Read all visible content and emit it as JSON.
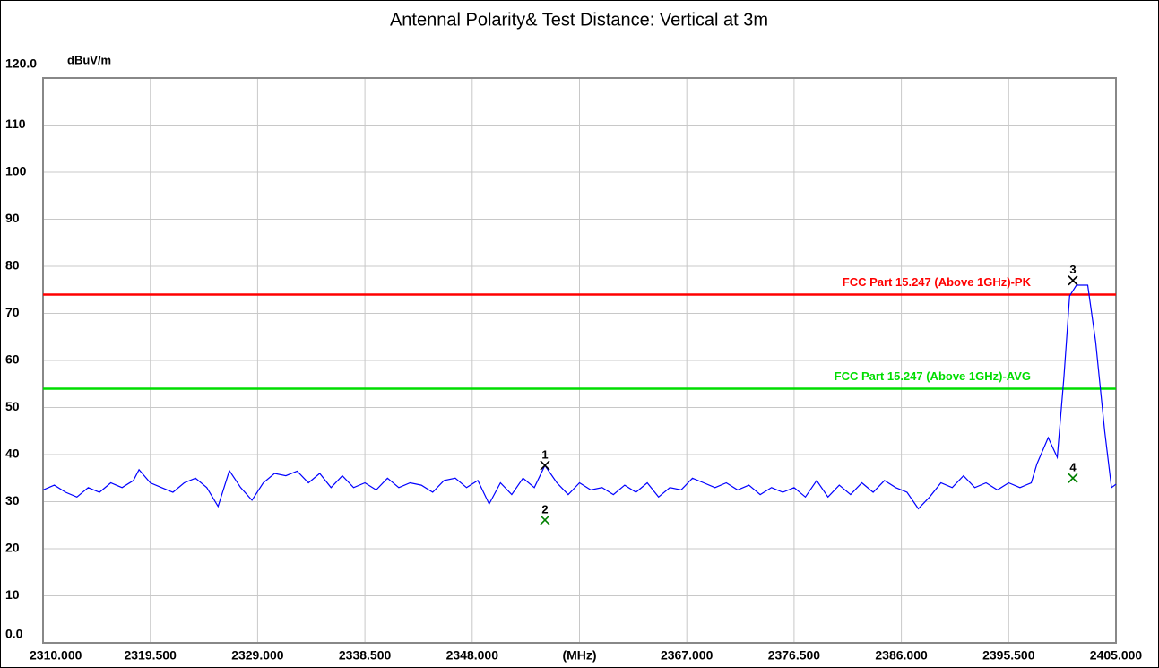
{
  "chart_data": {
    "type": "line",
    "title": "Antennal Polarity& Test Distance: Vertical at 3m",
    "y_unit": "dBuV/m",
    "xlim": [
      2310,
      2405
    ],
    "ylim": [
      0,
      120
    ],
    "xticks": [
      {
        "value": 2310,
        "label": "2310.000"
      },
      {
        "value": 2319.5,
        "label": "2319.500"
      },
      {
        "value": 2329,
        "label": "2329.000"
      },
      {
        "value": 2338.5,
        "label": "2338.500"
      },
      {
        "value": 2348,
        "label": "2348.000"
      },
      {
        "value": 2357.5,
        "label": "(MHz)"
      },
      {
        "value": 2367,
        "label": "2367.000"
      },
      {
        "value": 2376.5,
        "label": "2376.500"
      },
      {
        "value": 2386,
        "label": "2386.000"
      },
      {
        "value": 2395.5,
        "label": "2395.500"
      },
      {
        "value": 2405,
        "label": "2405.000"
      }
    ],
    "yticks": [
      {
        "value": 0,
        "label": "0.0"
      },
      10,
      20,
      30,
      40,
      50,
      60,
      70,
      80,
      90,
      100,
      110,
      {
        "value": 120,
        "label": "120.0"
      }
    ],
    "grid": true,
    "series": [
      {
        "color": "#0000ff",
        "x": [
          2310,
          2311,
          2312,
          2313,
          2314,
          2315,
          2316,
          2317,
          2318,
          2318.5,
          2319.5,
          2320.5,
          2321.5,
          2322.5,
          2323.5,
          2324.5,
          2325.5,
          2326.5,
          2327.5,
          2328.5,
          2329.5,
          2330.5,
          2331.5,
          2332.5,
          2333.5,
          2334.5,
          2335.5,
          2336.5,
          2337.5,
          2338.5,
          2339.5,
          2340.5,
          2341.5,
          2342.5,
          2343.5,
          2344.5,
          2345.5,
          2346.5,
          2347.5,
          2348.5,
          2349.5,
          2350.5,
          2351.5,
          2352.5,
          2353.5,
          2354.44,
          2355.5,
          2356.5,
          2357.5,
          2358.5,
          2359.5,
          2360.5,
          2361.5,
          2362.5,
          2363.5,
          2364.5,
          2365.5,
          2366.5,
          2367.5,
          2368.5,
          2369.5,
          2370.5,
          2371.5,
          2372.5,
          2373.5,
          2374.5,
          2375.5,
          2376.5,
          2377.5,
          2378.5,
          2379.5,
          2380.5,
          2381.5,
          2382.5,
          2383.5,
          2384.5,
          2385.5,
          2386.5,
          2387.5,
          2388.5,
          2389.5,
          2390.5,
          2391.5,
          2392.5,
          2393.5,
          2394.5,
          2395.5,
          2396.5,
          2397.5,
          2398,
          2399,
          2399.8,
          2400.4,
          2400.9,
          2401.5,
          2402.5,
          2403.2,
          2404,
          2404.6,
          2405
        ],
        "values": [
          32.5,
          33.5,
          32,
          31,
          33,
          32,
          34,
          33,
          34.5,
          36.8,
          34,
          33,
          32,
          34,
          35,
          33,
          29,
          36.6,
          33,
          30.3,
          34,
          36,
          35.5,
          36.5,
          34,
          36,
          33,
          35.5,
          33,
          34,
          32.5,
          35,
          33,
          34,
          33.5,
          32,
          34.5,
          35,
          33,
          34.5,
          29.5,
          34,
          31.5,
          35,
          33,
          37.7,
          34,
          31.5,
          34,
          32.5,
          33,
          31.5,
          33.5,
          32,
          34,
          31,
          33,
          32.5,
          35,
          34,
          33,
          34,
          32.5,
          33.5,
          31.5,
          33,
          32,
          33,
          31,
          34.5,
          31,
          33.5,
          31.5,
          34,
          32,
          34.5,
          33,
          32,
          28.5,
          31,
          34,
          33,
          35.5,
          33,
          34,
          32.5,
          34,
          33,
          34,
          38,
          43.6,
          39.4,
          56.6,
          73.7,
          76,
          76,
          64,
          45,
          33,
          33.7
        ]
      }
    ],
    "limits": [
      {
        "name": "FCC Part 15.247 (Above 1GHz)-PK",
        "value": 74,
        "color": "#ff0000"
      },
      {
        "name": "FCC Part 15.247 (Above 1GHz)-AVG",
        "value": 54,
        "color": "#00dd00"
      }
    ],
    "markers": [
      {
        "label": "1",
        "x": 2354.44,
        "y": 37.7,
        "color": "#000000"
      },
      {
        "label": "2",
        "x": 2354.44,
        "y": 26.1,
        "color": "#008000"
      },
      {
        "label": "3",
        "x": 2401.19,
        "y": 77.0,
        "color": "#000000"
      },
      {
        "label": "4",
        "x": 2401.19,
        "y": 35.0,
        "color": "#008000"
      }
    ]
  }
}
